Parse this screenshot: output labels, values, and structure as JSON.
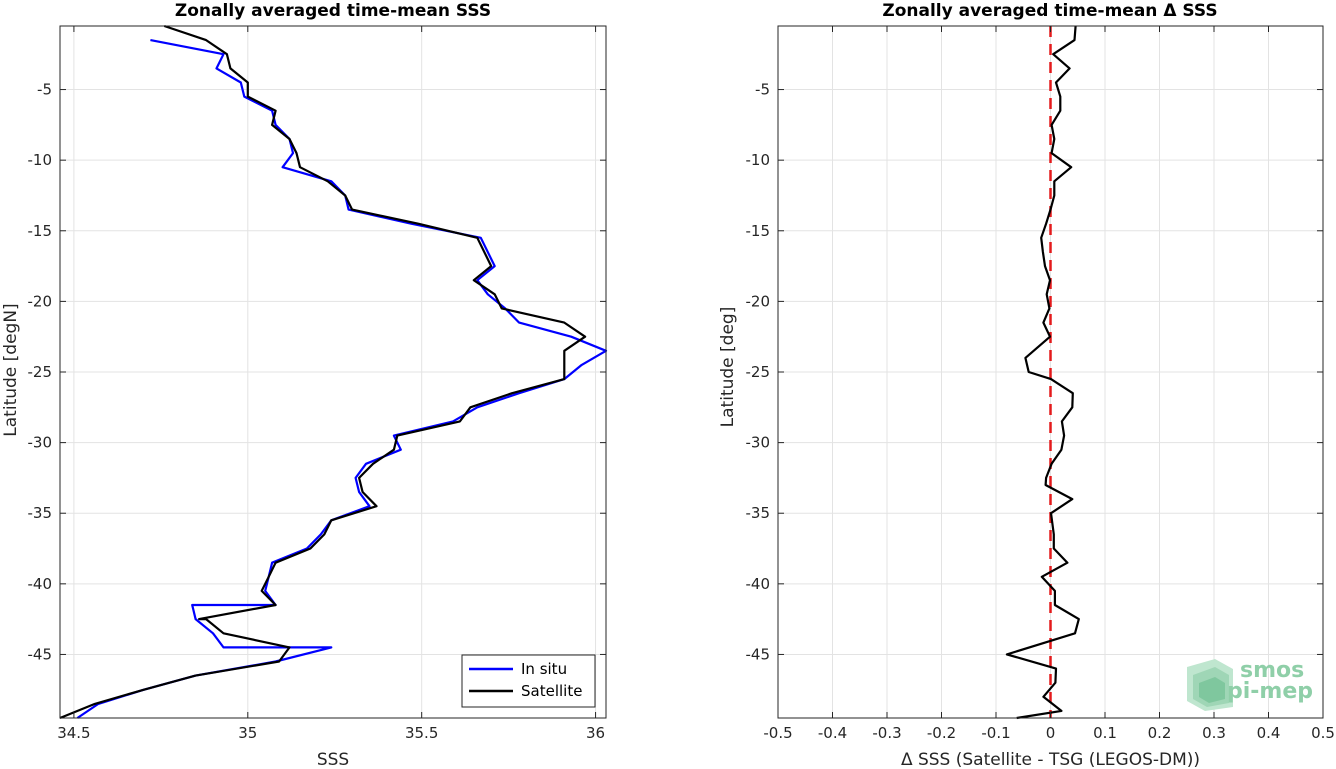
{
  "chart_data": [
    {
      "type": "line",
      "title": "Zonally averaged time-mean SSS",
      "xlabel": "SSS",
      "ylabel": "Latitude [degN]",
      "xlim": [
        34.46,
        36.03
      ],
      "ylim": [
        -49.5,
        -0.5
      ],
      "xticks": [
        34.5,
        35,
        35.5,
        36
      ],
      "xtick_labels": [
        "34.5",
        "35",
        "35.5",
        "36"
      ],
      "yticks": [
        -5,
        -10,
        -15,
        -20,
        -25,
        -30,
        -35,
        -40,
        -45
      ],
      "ytick_labels": [
        "-5",
        "-10",
        "-15",
        "-20",
        "-25",
        "-30",
        "-35",
        "-40",
        "-45"
      ],
      "grid": true,
      "legend": "bottom-right",
      "series": [
        {
          "name": "In situ",
          "color": "#0000ff",
          "x": [
            34.72,
            34.93,
            34.91,
            34.98,
            34.99,
            35.07,
            35.08,
            35.12,
            35.13,
            35.1,
            35.24,
            35.28,
            35.29,
            35.47,
            35.67,
            35.71,
            35.66,
            35.69,
            35.74,
            35.78,
            35.93,
            36.03,
            35.96,
            35.91,
            35.78,
            35.66,
            35.59,
            35.42,
            35.44,
            35.34,
            35.31,
            35.32,
            35.35,
            35.24,
            35.21,
            35.17,
            35.07,
            35.06,
            35.05,
            35.08,
            34.84,
            34.85,
            34.9,
            34.93,
            35.24,
            35.08,
            34.85,
            34.7,
            34.57,
            34.51
          ],
          "y": [
            -1.5,
            -2.5,
            -3.5,
            -4.5,
            -5.5,
            -6.5,
            -7.5,
            -8.5,
            -9.5,
            -10.5,
            -11.5,
            -12.5,
            -13.5,
            -14.5,
            -15.5,
            -17.5,
            -18.5,
            -19.5,
            -20.5,
            -21.5,
            -22.5,
            -23.5,
            -24.5,
            -25.5,
            -26.5,
            -27.5,
            -28.5,
            -29.5,
            -30.5,
            -31.5,
            -32.5,
            -33.5,
            -34.5,
            -35.5,
            -36.5,
            -37.5,
            -38.5,
            -39.5,
            -40.5,
            -41.5,
            -41.5,
            -42.5,
            -43.5,
            -44.5,
            -44.5,
            -45.5,
            -46.5,
            -47.5,
            -48.5,
            -49.5
          ]
        },
        {
          "name": "Satellite",
          "color": "#000000",
          "x": [
            34.76,
            34.88,
            34.94,
            34.95,
            35.0,
            35.0,
            35.08,
            35.07,
            35.12,
            35.14,
            35.15,
            35.23,
            35.28,
            35.3,
            35.49,
            35.66,
            35.7,
            35.65,
            35.71,
            35.73,
            35.91,
            35.97,
            35.91,
            35.91,
            35.76,
            35.64,
            35.61,
            35.43,
            35.42,
            35.36,
            35.32,
            35.33,
            35.37,
            35.24,
            35.22,
            35.18,
            35.08,
            35.06,
            35.04,
            35.08,
            34.86,
            34.88,
            34.93,
            35.12,
            35.09,
            34.85,
            34.7,
            34.56,
            34.46
          ],
          "y": [
            -0.5,
            -1.5,
            -2.5,
            -3.5,
            -4.5,
            -5.5,
            -6.5,
            -7.5,
            -8.5,
            -9.5,
            -10.5,
            -11.5,
            -12.5,
            -13.5,
            -14.5,
            -15.5,
            -17.5,
            -18.5,
            -19.5,
            -20.5,
            -21.5,
            -22.5,
            -23.5,
            -25.5,
            -26.5,
            -27.5,
            -28.5,
            -29.5,
            -30.5,
            -31.5,
            -32.5,
            -33.5,
            -34.5,
            -35.5,
            -36.5,
            -37.5,
            -38.5,
            -39.5,
            -40.5,
            -41.5,
            -42.5,
            -42.5,
            -43.5,
            -44.5,
            -45.5,
            -46.5,
            -47.5,
            -48.5,
            -49.5
          ]
        }
      ]
    },
    {
      "type": "line",
      "title": "Zonally averaged time-mean Δ SSS",
      "xlabel": "Δ SSS (Satellite - TSG (LEGOS-DM))",
      "ylabel": "Latitude [deg]",
      "xlim": [
        -0.5,
        0.5
      ],
      "ylim": [
        -49.5,
        -0.5
      ],
      "xticks": [
        -0.5,
        -0.4,
        -0.3,
        -0.2,
        -0.1,
        0,
        0.1,
        0.2,
        0.3,
        0.4,
        0.5
      ],
      "xtick_labels": [
        "-0.5",
        "-0.4",
        "-0.3",
        "-0.2",
        "-0.1",
        "0",
        "0.1",
        "0.2",
        "0.3",
        "0.4",
        "0.5"
      ],
      "yticks": [
        -5,
        -10,
        -15,
        -20,
        -25,
        -30,
        -35,
        -40,
        -45
      ],
      "ytick_labels": [
        "-5",
        "-10",
        "-15",
        "-20",
        "-25",
        "-30",
        "-35",
        "-40",
        "-45"
      ],
      "grid": true,
      "reference_line": {
        "x": 0,
        "color": "#e41a1c",
        "style": "dashed"
      },
      "series": [
        {
          "color": "#000000",
          "x": [
            0.046,
            0.044,
            0.005,
            0.035,
            0.01,
            0.018,
            0.018,
            0.002,
            0.007,
            0.002,
            0.038,
            0.007,
            0.007,
            0.0,
            -0.008,
            -0.017,
            -0.014,
            -0.01,
            -0.001,
            -0.007,
            -0.002,
            -0.013,
            -0.001,
            -0.046,
            -0.04,
            0.001,
            0.041,
            0.04,
            0.021,
            0.025,
            0.02,
            0.002,
            -0.008,
            -0.009,
            0.04,
            0.001,
            0.006,
            0.006,
            0.031,
            -0.016,
            0.008,
            0.008,
            0.052,
            0.045,
            -0.08,
            0.01,
            0.009,
            -0.013,
            0.02,
            -0.062
          ],
          "y": [
            -0.5,
            -1.5,
            -2.5,
            -3.5,
            -4.5,
            -5.5,
            -6.5,
            -7.5,
            -8.5,
            -9.5,
            -10.5,
            -11.5,
            -12.5,
            -13.5,
            -14.5,
            -15.5,
            -16.5,
            -17.5,
            -18.5,
            -19.5,
            -20.5,
            -21.5,
            -22.5,
            -24.0,
            -25.0,
            -25.5,
            -26.5,
            -27.5,
            -28.5,
            -29.5,
            -30.5,
            -31.5,
            -32.5,
            -33.0,
            -34.0,
            -35.0,
            -36.5,
            -37.5,
            -38.5,
            -39.5,
            -40.5,
            -41.5,
            -42.5,
            -43.5,
            -45.0,
            -46.0,
            -47.0,
            -48.0,
            -49.0,
            -49.5
          ]
        }
      ]
    }
  ],
  "legend": {
    "entries": [
      {
        "label": "In situ",
        "color": "#0000ff"
      },
      {
        "label": "Satellite",
        "color": "#000000"
      }
    ]
  },
  "logo": {
    "line1": "smos",
    "line2": "pi-mep"
  }
}
